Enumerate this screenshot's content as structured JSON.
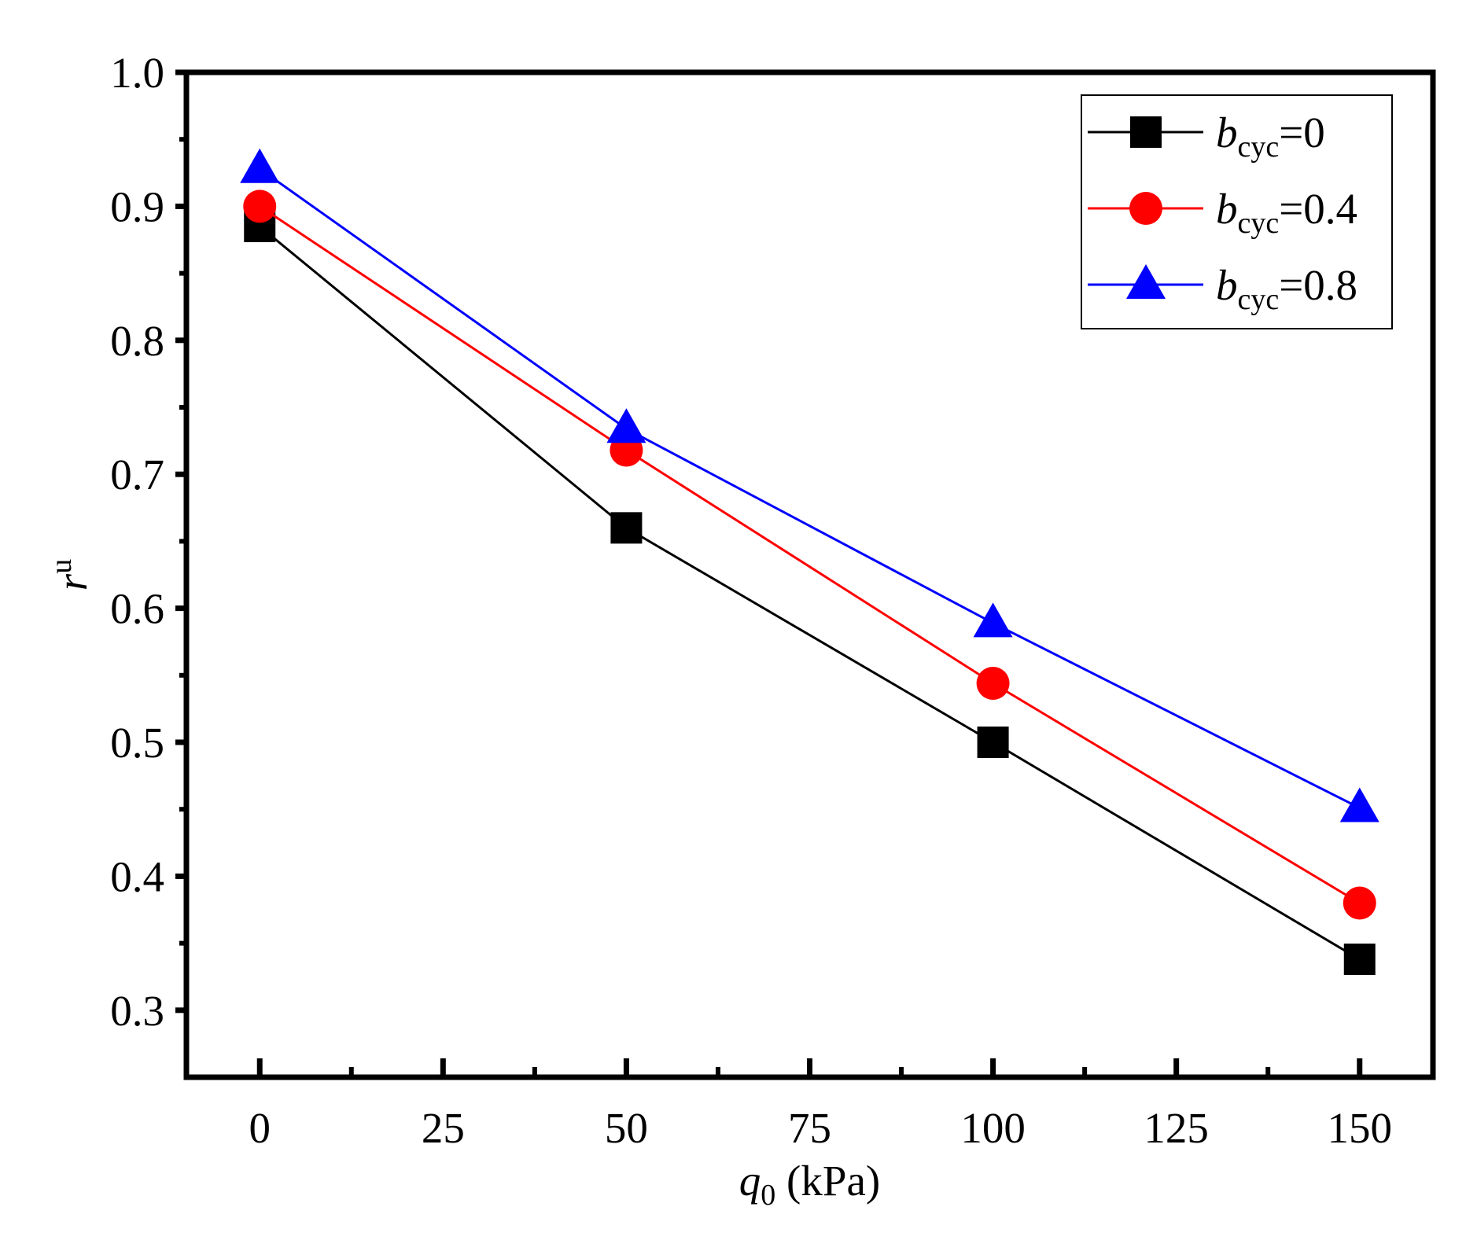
{
  "chart_data": {
    "type": "line",
    "title": "",
    "xlabel": {
      "var": "q",
      "sub": "0",
      "unit": " (kPa)"
    },
    "ylabel": {
      "var": "r",
      "sup": "u"
    },
    "xlim": [
      -10,
      160
    ],
    "ylim": [
      0.25,
      1.0
    ],
    "xticks": [
      0,
      25,
      50,
      75,
      100,
      125,
      150
    ],
    "xtick_labels": [
      "0",
      "25",
      "50",
      "75",
      "100",
      "125",
      "150"
    ],
    "yticks": [
      0.3,
      0.4,
      0.5,
      0.6,
      0.7,
      0.8,
      0.9,
      1.0
    ],
    "ytick_labels": [
      "0.3",
      "0.4",
      "0.5",
      "0.6",
      "0.7",
      "0.8",
      "0.9",
      "1.0"
    ],
    "legend_position": "top-right",
    "x": [
      0,
      50,
      100,
      150
    ],
    "series": [
      {
        "name": "b_cyc=0",
        "label_var": "b",
        "label_sub": "cyc",
        "label_value": "=0",
        "color": "#000000",
        "marker": "square",
        "values": [
          0.885,
          0.66,
          0.5,
          0.338
        ]
      },
      {
        "name": "b_cyc=0.4",
        "label_var": "b",
        "label_sub": "cyc",
        "label_value": "=0.4",
        "color": "#ff0000",
        "marker": "circle",
        "values": [
          0.9,
          0.718,
          0.544,
          0.38
        ]
      },
      {
        "name": "b_cyc=0.8",
        "label_var": "b",
        "label_sub": "cyc",
        "label_value": "=0.8",
        "color": "#0000ff",
        "marker": "triangle",
        "values": [
          0.928,
          0.734,
          0.589,
          0.451
        ]
      }
    ]
  }
}
